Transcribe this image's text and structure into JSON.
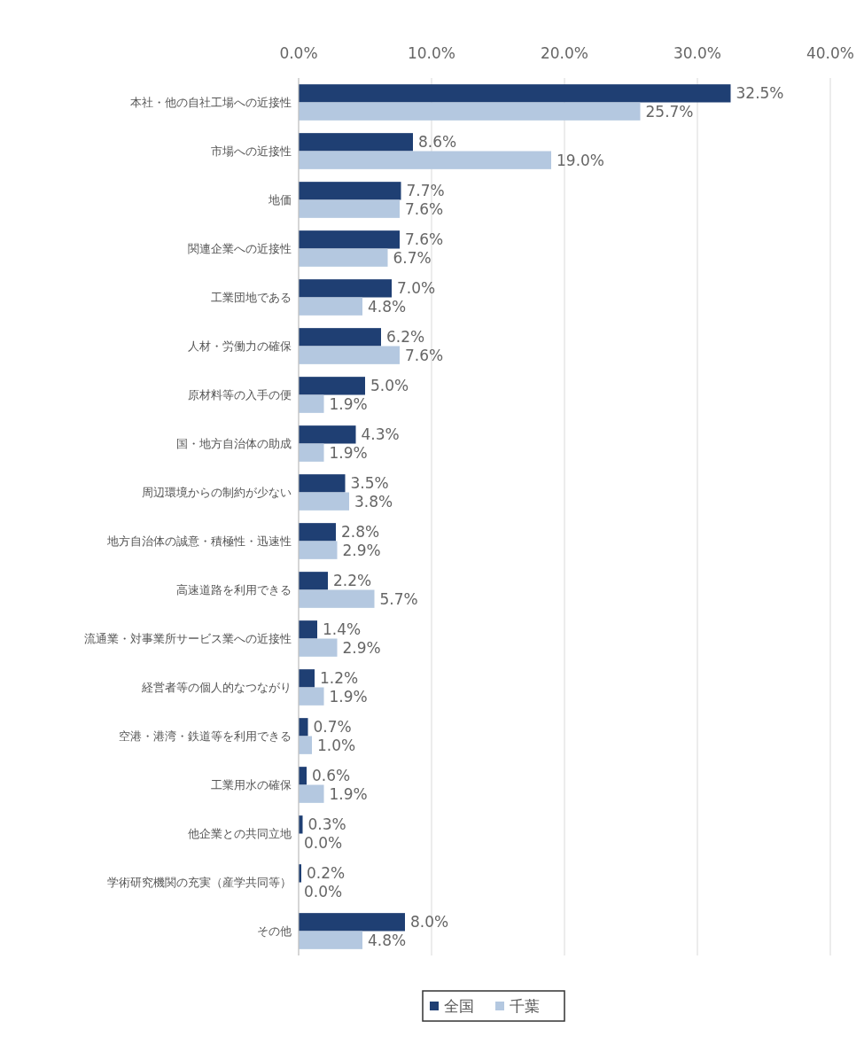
{
  "chart_data": {
    "type": "bar",
    "orientation": "horizontal",
    "categories": [
      "本社・他の自社工場への近接性",
      "市場への近接性",
      "地価",
      "関連企業への近接性",
      "工業団地である",
      "人材・労働力の確保",
      "原材料等の入手の便",
      "国・地方自治体の助成",
      "周辺環境からの制約が少ない",
      "地方自治体の誠意・積極性・迅速性",
      "高速道路を利用できる",
      "流通業・対事業所サービス業への近接性",
      "経営者等の個人的なつながり",
      "空港・港湾・鉄道等を利用できる",
      "工業用水の確保",
      "他企業との共同立地",
      "学術研究機関の充実（産学共同等）",
      "その他"
    ],
    "series": [
      {
        "name": "全国",
        "color": "#1f3f73",
        "values": [
          32.5,
          8.6,
          7.7,
          7.6,
          7.0,
          6.2,
          5.0,
          4.3,
          3.5,
          2.8,
          2.2,
          1.4,
          1.2,
          0.7,
          0.6,
          0.3,
          0.2,
          8.0
        ],
        "value_labels": [
          "32.5%",
          "8.6%",
          "7.7%",
          "7.6%",
          "7.0%",
          "6.2%",
          "5.0%",
          "4.3%",
          "3.5%",
          "2.8%",
          "2.2%",
          "1.4%",
          "1.2%",
          "0.7%",
          "0.6%",
          "0.3%",
          "0.2%",
          "8.0%"
        ]
      },
      {
        "name": "千葉",
        "color": "#b4c8e0",
        "values": [
          25.7,
          19.0,
          7.6,
          6.7,
          4.8,
          7.6,
          1.9,
          1.9,
          3.8,
          2.9,
          5.7,
          2.9,
          1.9,
          1.0,
          1.9,
          0.0,
          0.0,
          4.8
        ],
        "value_labels": [
          "25.7%",
          "19.0%",
          "7.6%",
          "6.7%",
          "4.8%",
          "7.6%",
          "1.9%",
          "1.9%",
          "3.8%",
          "2.9%",
          "5.7%",
          "2.9%",
          "1.9%",
          "1.0%",
          "1.9%",
          "0.0%",
          "0.0%",
          "4.8%"
        ]
      }
    ],
    "xlim": [
      0,
      40
    ],
    "xticks": [
      {
        "value": 0,
        "label": "0.0%"
      },
      {
        "value": 10,
        "label": "10.0%"
      },
      {
        "value": 20,
        "label": "20.0%"
      },
      {
        "value": 30,
        "label": "30.0%"
      },
      {
        "value": 40,
        "label": "40.0%"
      }
    ],
    "grid": "x",
    "legend": "bottom"
  }
}
